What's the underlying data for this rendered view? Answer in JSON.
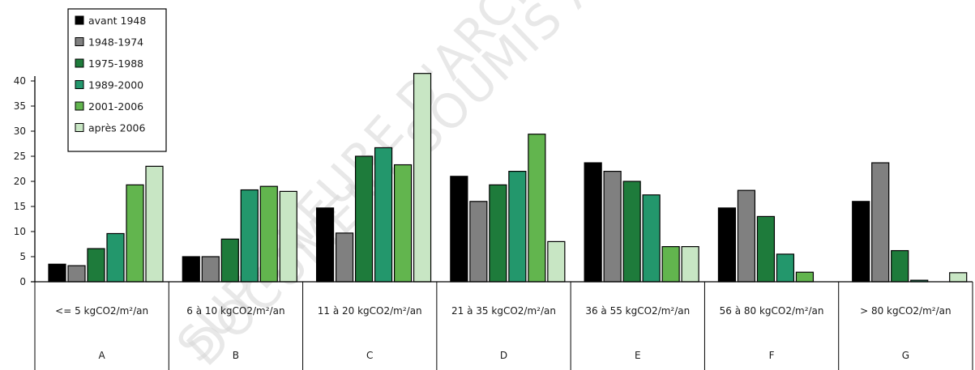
{
  "chart_data": {
    "type": "bar",
    "title": "",
    "xlabel": "",
    "ylabel": "",
    "ylim": [
      0,
      40
    ],
    "yticks": [
      0,
      5,
      10,
      15,
      20,
      25,
      30,
      35,
      40
    ],
    "grid": false,
    "legend_position": "top-left",
    "categories": [
      "<= 5 kgCO2/m²/an",
      "6 à 10 kgCO2/m²/an",
      "11 à 20 kgCO2/m²/an",
      "21 à 35 kgCO2/m²/an",
      "36 à 55 kgCO2/m²/an",
      "56 à 80 kgCO2/m²/an",
      "> 80 kgCO2/m²/an"
    ],
    "category_letters": [
      "A",
      "B",
      "C",
      "D",
      "E",
      "F",
      "G"
    ],
    "series": [
      {
        "name": "avant 1948",
        "color": "#000000",
        "values": [
          3.5,
          5,
          14.7,
          21,
          23.7,
          14.7,
          16
        ]
      },
      {
        "name": "1948-1974",
        "color": "#808080",
        "values": [
          3.2,
          5,
          9.7,
          16,
          22,
          18.2,
          23.7
        ]
      },
      {
        "name": "1975-1988",
        "color": "#1e7b3b",
        "values": [
          6.6,
          8.5,
          25,
          19.3,
          20,
          13,
          6.2
        ]
      },
      {
        "name": "1989-2000",
        "color": "#23976c",
        "values": [
          9.6,
          18.3,
          26.7,
          22,
          17.3,
          5.5,
          0.3
        ]
      },
      {
        "name": "2001-2006",
        "color": "#62b54e",
        "values": [
          19.3,
          19,
          23.3,
          29.4,
          7,
          1.9,
          0
        ]
      },
      {
        "name": "après 2006",
        "color": "#c8e6c4",
        "values": [
          23,
          18,
          41.5,
          8,
          7,
          0,
          1.8
        ]
      }
    ]
  },
  "watermarks": [
    "SUPERIEURE D'ARCHITECTURE",
    "DOCUMENT SOUMIS AU DROIT D'AUTEUR"
  ]
}
